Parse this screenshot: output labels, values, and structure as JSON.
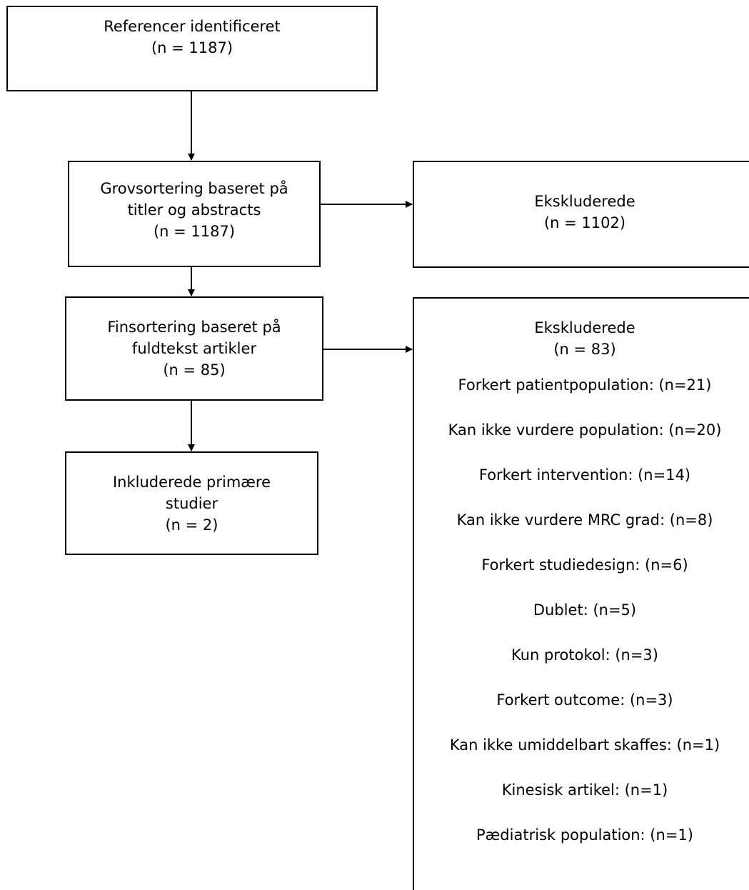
{
  "identified": {
    "title": "Referencer identificeret",
    "count": "(n = 1187)"
  },
  "screening": {
    "line1": "Grovsortering baseret på",
    "line2": "titler og abstracts",
    "count": "(n = 1187)"
  },
  "excluded_screening": {
    "title": "Ekskluderede",
    "count": "(n = 1102)"
  },
  "fulltext": {
    "line1": "Finsortering baseret på",
    "line2": "fuldtekst artikler",
    "count": "(n = 85)"
  },
  "excluded_fulltext": {
    "title": "Ekskluderede",
    "count": "(n = 83)",
    "reasons": [
      "Forkert patientpopulation: (n=21)",
      "Kan ikke vurdere population: (n=20)",
      "Forkert intervention: (n=14)",
      "Kan ikke vurdere MRC grad: (n=8)",
      "Forkert studiedesign: (n=6)",
      "Dublet: (n=5)",
      "Kun protokol: (n=3)",
      "Forkert outcome: (n=3)",
      "Kan ikke umiddelbart skaffes: (n=1)",
      "Kinesisk artikel: (n=1)",
      "Pædiatrisk population: (n=1)"
    ]
  },
  "included": {
    "line1": "Inkluderede primære",
    "line2": "studier",
    "count": "(n = 2)"
  }
}
